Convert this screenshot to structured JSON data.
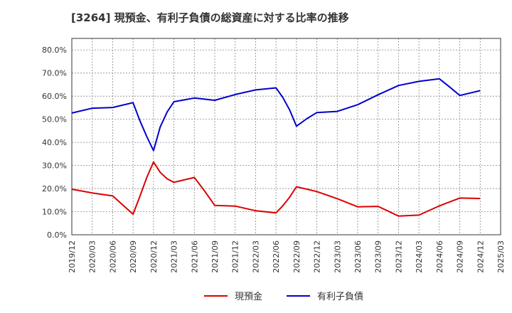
{
  "chart_data": {
    "type": "line",
    "title": "[3264]  現預金、有利子負債の総資産に対する比率の推移",
    "xlabel": "",
    "ylabel": "",
    "ylim": [
      0,
      0.85
    ],
    "y_ticks": [
      0.0,
      0.1,
      0.2,
      0.3,
      0.4,
      0.5,
      0.6,
      0.7,
      0.8
    ],
    "y_tick_labels": [
      "0.0%",
      "10.0%",
      "20.0%",
      "30.0%",
      "40.0%",
      "50.0%",
      "60.0%",
      "70.0%",
      "80.0%"
    ],
    "x_tick_labels": [
      "2019/12",
      "2020/03",
      "2020/06",
      "2020/09",
      "2020/12",
      "2021/03",
      "2021/06",
      "2021/09",
      "2021/12",
      "2022/03",
      "2022/06",
      "2022/09",
      "2022/12",
      "2023/03",
      "2023/06",
      "2023/09",
      "2023/12",
      "2024/03",
      "2024/06",
      "2024/09",
      "2024/12",
      "2025/03"
    ],
    "grid": true,
    "legend_position": "bottom-center",
    "series": [
      {
        "name": "現預金",
        "color": "#dd0000",
        "points": [
          [
            0,
            0.197
          ],
          [
            1,
            0.181
          ],
          [
            2,
            0.168
          ],
          [
            3,
            0.089
          ],
          [
            3.33,
            0.165
          ],
          [
            3.67,
            0.248
          ],
          [
            4,
            0.315
          ],
          [
            4.33,
            0.27
          ],
          [
            4.67,
            0.242
          ],
          [
            5,
            0.227
          ],
          [
            6,
            0.248
          ],
          [
            6.5,
            0.19
          ],
          [
            7,
            0.127
          ],
          [
            8,
            0.124
          ],
          [
            9,
            0.104
          ],
          [
            10,
            0.095
          ],
          [
            10.33,
            0.125
          ],
          [
            10.67,
            0.163
          ],
          [
            11,
            0.208
          ],
          [
            12,
            0.187
          ],
          [
            13,
            0.156
          ],
          [
            14,
            0.121
          ],
          [
            15,
            0.123
          ],
          [
            16,
            0.081
          ],
          [
            17,
            0.085
          ],
          [
            18,
            0.125
          ],
          [
            19,
            0.159
          ],
          [
            20,
            0.157
          ]
        ]
      },
      {
        "name": "有利子負債",
        "color": "#0000cc",
        "points": [
          [
            0,
            0.527
          ],
          [
            1,
            0.548
          ],
          [
            2,
            0.551
          ],
          [
            3,
            0.572
          ],
          [
            3.33,
            0.495
          ],
          [
            3.67,
            0.425
          ],
          [
            4,
            0.364
          ],
          [
            4.33,
            0.467
          ],
          [
            4.67,
            0.532
          ],
          [
            5,
            0.576
          ],
          [
            6,
            0.592
          ],
          [
            7,
            0.582
          ],
          [
            8,
            0.607
          ],
          [
            9,
            0.627
          ],
          [
            10,
            0.636
          ],
          [
            10.33,
            0.595
          ],
          [
            10.67,
            0.54
          ],
          [
            11,
            0.47
          ],
          [
            11.5,
            0.502
          ],
          [
            12,
            0.529
          ],
          [
            13,
            0.534
          ],
          [
            14,
            0.563
          ],
          [
            15,
            0.606
          ],
          [
            16,
            0.646
          ],
          [
            17,
            0.664
          ],
          [
            18,
            0.675
          ],
          [
            18.5,
            0.64
          ],
          [
            19,
            0.603
          ],
          [
            20,
            0.624
          ]
        ]
      }
    ]
  }
}
